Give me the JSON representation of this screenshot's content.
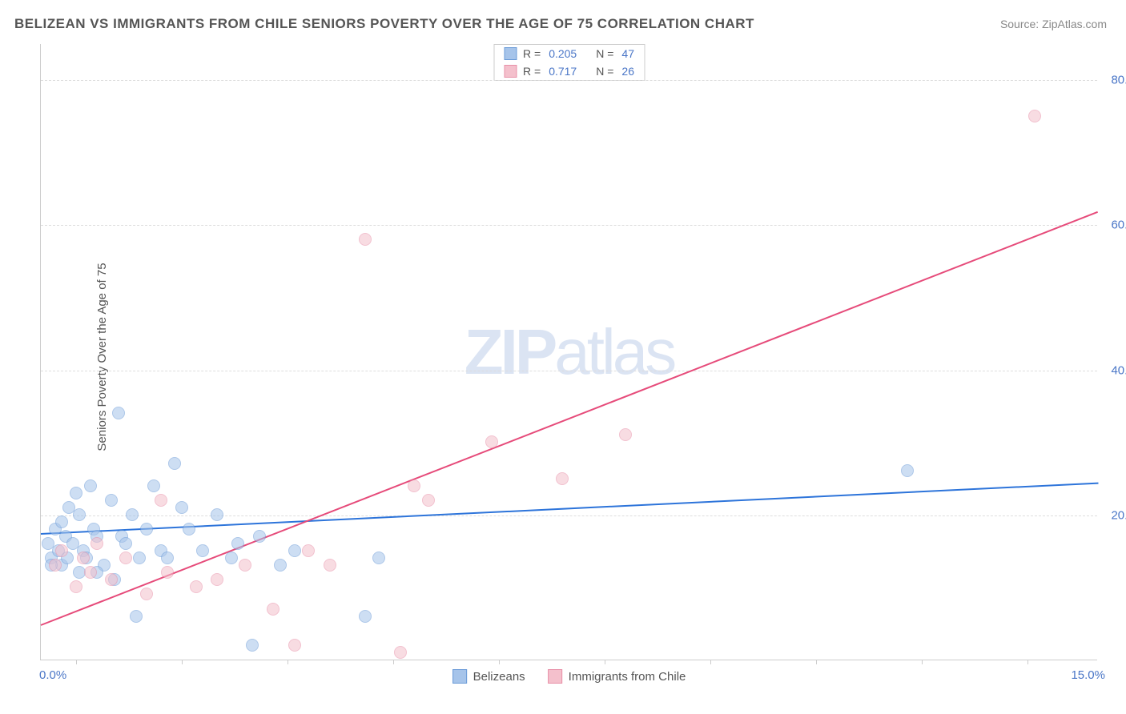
{
  "title": "BELIZEAN VS IMMIGRANTS FROM CHILE SENIORS POVERTY OVER THE AGE OF 75 CORRELATION CHART",
  "source": "Source: ZipAtlas.com",
  "ylabel": "Seniors Poverty Over the Age of 75",
  "watermark_part1": "ZIP",
  "watermark_part2": "atlas",
  "chart": {
    "type": "scatter",
    "xlim": [
      0,
      15
    ],
    "ylim": [
      0,
      85
    ],
    "x_axis_labels": {
      "left": "0.0%",
      "right": "15.0%"
    },
    "y_axis_ticks": [
      {
        "value": 20,
        "label": "20.0%"
      },
      {
        "value": 40,
        "label": "40.0%"
      },
      {
        "value": 60,
        "label": "60.0%"
      },
      {
        "value": 80,
        "label": "80.0%"
      }
    ],
    "x_tick_positions": [
      0.5,
      2.0,
      3.5,
      5.0,
      6.5,
      8.0,
      9.5,
      11.0,
      12.5,
      14.0
    ],
    "background_color": "#ffffff",
    "grid_color": "#dddddd",
    "marker_radius": 8,
    "marker_opacity": 0.55,
    "series": [
      {
        "name": "Belizeans",
        "color_fill": "#a6c4ea",
        "color_stroke": "#6b9bd8",
        "trend_color": "#2d74da",
        "R": "0.205",
        "N": "47",
        "trend": {
          "x1": 0,
          "y1": 17.5,
          "x2": 15,
          "y2": 24.5
        },
        "points": [
          [
            0.1,
            16
          ],
          [
            0.15,
            14
          ],
          [
            0.2,
            18
          ],
          [
            0.25,
            15
          ],
          [
            0.3,
            19
          ],
          [
            0.3,
            13
          ],
          [
            0.35,
            17
          ],
          [
            0.4,
            21
          ],
          [
            0.45,
            16
          ],
          [
            0.5,
            23
          ],
          [
            0.55,
            20
          ],
          [
            0.6,
            15
          ],
          [
            0.65,
            14
          ],
          [
            0.7,
            24
          ],
          [
            0.75,
            18
          ],
          [
            0.8,
            17
          ],
          [
            0.9,
            13
          ],
          [
            1.0,
            22
          ],
          [
            1.1,
            34
          ],
          [
            1.15,
            17
          ],
          [
            1.2,
            16
          ],
          [
            1.3,
            20
          ],
          [
            1.4,
            14
          ],
          [
            1.5,
            18
          ],
          [
            1.6,
            24
          ],
          [
            1.7,
            15
          ],
          [
            1.8,
            14
          ],
          [
            1.9,
            27
          ],
          [
            2.0,
            21
          ],
          [
            2.1,
            18
          ],
          [
            2.3,
            15
          ],
          [
            2.5,
            20
          ],
          [
            2.7,
            14
          ],
          [
            2.8,
            16
          ],
          [
            3.0,
            2
          ],
          [
            3.1,
            17
          ],
          [
            3.4,
            13
          ],
          [
            3.6,
            15
          ],
          [
            4.6,
            6
          ],
          [
            4.8,
            14
          ],
          [
            1.35,
            6
          ],
          [
            0.55,
            12
          ],
          [
            0.8,
            12
          ],
          [
            1.05,
            11
          ],
          [
            0.15,
            13
          ],
          [
            0.38,
            14
          ],
          [
            12.3,
            26
          ]
        ]
      },
      {
        "name": "Immigrants from Chile",
        "color_fill": "#f4c0cc",
        "color_stroke": "#e890a8",
        "trend_color": "#e64b7a",
        "R": "0.717",
        "N": "26",
        "trend": {
          "x1": 0,
          "y1": 5,
          "x2": 15,
          "y2": 62
        },
        "points": [
          [
            0.2,
            13
          ],
          [
            0.3,
            15
          ],
          [
            0.5,
            10
          ],
          [
            0.6,
            14
          ],
          [
            0.7,
            12
          ],
          [
            0.8,
            16
          ],
          [
            1.0,
            11
          ],
          [
            1.2,
            14
          ],
          [
            1.5,
            9
          ],
          [
            1.7,
            22
          ],
          [
            1.8,
            12
          ],
          [
            2.2,
            10
          ],
          [
            2.5,
            11
          ],
          [
            2.9,
            13
          ],
          [
            3.3,
            7
          ],
          [
            3.6,
            2
          ],
          [
            3.8,
            15
          ],
          [
            4.1,
            13
          ],
          [
            4.6,
            58
          ],
          [
            5.1,
            1
          ],
          [
            5.3,
            24
          ],
          [
            5.5,
            22
          ],
          [
            6.4,
            30
          ],
          [
            7.4,
            25
          ],
          [
            8.3,
            31
          ],
          [
            14.1,
            75
          ]
        ]
      }
    ]
  }
}
